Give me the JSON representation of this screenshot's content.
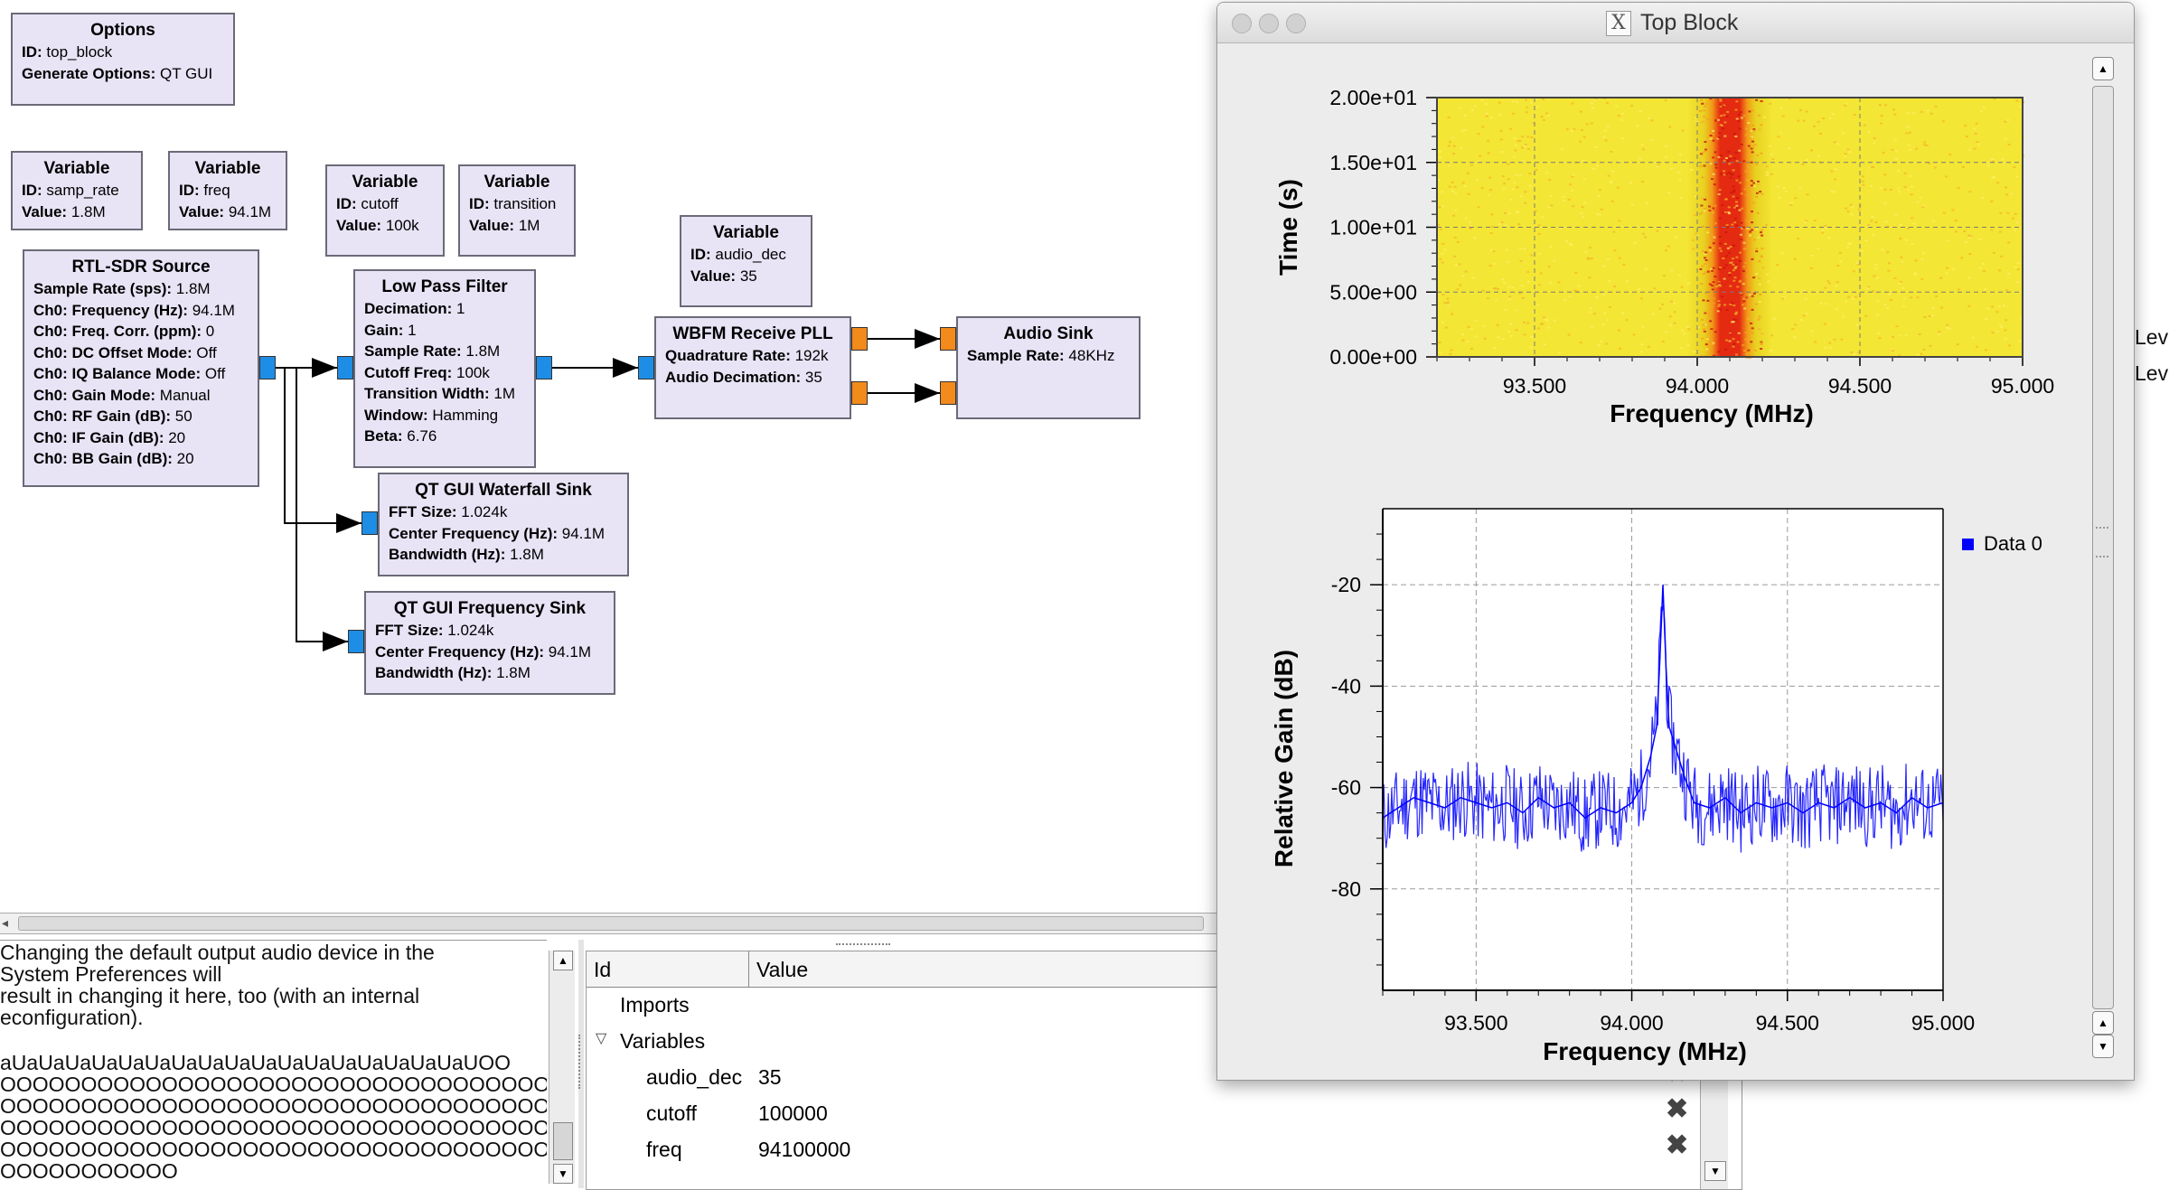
{
  "flowgraph": {
    "blocks": [
      {
        "title": "Options",
        "params": [
          [
            "ID:",
            "top_block"
          ],
          [
            "Generate Options:",
            "QT GUI"
          ]
        ]
      },
      {
        "title": "Variable",
        "params": [
          [
            "ID:",
            "samp_rate"
          ],
          [
            "Value:",
            "1.8M"
          ]
        ]
      },
      {
        "title": "Variable",
        "params": [
          [
            "ID:",
            "freq"
          ],
          [
            "Value:",
            "94.1M"
          ]
        ]
      },
      {
        "title": "Variable",
        "params": [
          [
            "ID:",
            "cutoff"
          ],
          [
            "Value:",
            "100k"
          ]
        ]
      },
      {
        "title": "Variable",
        "params": [
          [
            "ID:",
            "transition"
          ],
          [
            "Value:",
            "1M"
          ]
        ]
      },
      {
        "title": "Variable",
        "params": [
          [
            "ID:",
            "audio_dec"
          ],
          [
            "Value:",
            "35"
          ]
        ]
      },
      {
        "title": "RTL-SDR Source",
        "params": [
          [
            "Sample Rate (sps):",
            "1.8M"
          ],
          [
            "Ch0: Frequency (Hz):",
            "94.1M"
          ],
          [
            "Ch0: Freq. Corr. (ppm):",
            "0"
          ],
          [
            "Ch0: DC Offset Mode:",
            "Off"
          ],
          [
            "Ch0: IQ Balance Mode:",
            "Off"
          ],
          [
            "Ch0: Gain Mode:",
            "Manual"
          ],
          [
            "Ch0: RF Gain (dB):",
            "50"
          ],
          [
            "Ch0: IF Gain (dB):",
            "20"
          ],
          [
            "Ch0: BB Gain (dB):",
            "20"
          ]
        ]
      },
      {
        "title": "Low Pass Filter",
        "params": [
          [
            "Decimation:",
            "1"
          ],
          [
            "Gain:",
            "1"
          ],
          [
            "Sample Rate:",
            "1.8M"
          ],
          [
            "Cutoff Freq:",
            "100k"
          ],
          [
            "Transition Width:",
            "1M"
          ],
          [
            "Window:",
            "Hamming"
          ],
          [
            "Beta:",
            "6.76"
          ]
        ]
      },
      {
        "title": "WBFM Receive PLL",
        "params": [
          [
            "Quadrature Rate:",
            "192k"
          ],
          [
            "Audio Decimation:",
            "35"
          ]
        ]
      },
      {
        "title": "Audio Sink",
        "params": [
          [
            "Sample Rate:",
            "48KHz"
          ]
        ]
      },
      {
        "title": "QT GUI Waterfall Sink",
        "params": [
          [
            "FFT Size:",
            "1.024k"
          ],
          [
            "Center Frequency (Hz):",
            "94.1M"
          ],
          [
            "Bandwidth (Hz):",
            "1.8M"
          ]
        ]
      },
      {
        "title": "QT GUI Frequency Sink",
        "params": [
          [
            "FFT Size:",
            "1.024k"
          ],
          [
            "Center Frequency (Hz):",
            "94.1M"
          ],
          [
            "Bandwidth (Hz):",
            "1.8M"
          ]
        ]
      }
    ]
  },
  "console": {
    "lines": [
      " Changing the default output audio device in the",
      "System Preferences will",
      " result in changing it here, too (with an internal",
      "econfiguration).",
      "",
      "aUaUaUaUaUaUaUaUaUaUaUaUaUaUaUaUaUaUOO",
      "OOOOOOOOOOOOOOOOOOOOOOOOOOOOOOOOOOOO",
      "OOOOOOOOOOOOOOOOOOOOOOOOOOOOOOOOOOOO",
      "OOOOOOOOOOOOOOOOOOOOOOOOOOOOOOOOOOOO",
      "OOOOOOOOOOOOOOOOOOOOOOOOOOOOOOOOOOOO",
      "OOOOOOOOOOO"
    ]
  },
  "variables_panel": {
    "col_id": "Id",
    "col_value": "Value",
    "groups": {
      "imports": "Imports",
      "variables": "Variables"
    },
    "rows": [
      {
        "id": "audio_dec",
        "value": "35"
      },
      {
        "id": "cutoff",
        "value": "100000"
      },
      {
        "id": "freq",
        "value": "94100000"
      }
    ]
  },
  "right_labels": [
    "Lev",
    "Lev"
  ],
  "window": {
    "title": "Top Block",
    "x_glyph": "X",
    "legend": "Data 0",
    "accent_trace": "#0000ff"
  },
  "chart_data": [
    {
      "type": "heatmap",
      "title": "",
      "xlabel": "Frequency (MHz)",
      "ylabel": "Time (s)",
      "xlim": [
        93.2,
        95.0
      ],
      "ylim": [
        0,
        20
      ],
      "xticks": [
        "93.500",
        "94.000",
        "94.500",
        "95.000"
      ],
      "yticks": [
        "0.00e+00",
        "5.00e+00",
        "1.00e+01",
        "1.50e+01",
        "2.00e+01"
      ],
      "xtick_values": [
        93.5,
        94.0,
        94.5,
        95.0
      ],
      "ytick_values": [
        0,
        5,
        10,
        15,
        20
      ],
      "peak_center_mhz": 94.1,
      "peak_width_mhz": 0.12,
      "grid": true,
      "colormap": [
        "#f4e634",
        "#e8d020",
        "#f29a18",
        "#e52a12"
      ]
    },
    {
      "type": "line",
      "title": "",
      "xlabel": "Frequency (MHz)",
      "ylabel": "Relative Gain (dB)",
      "xlim": [
        93.2,
        95.0
      ],
      "ylim": [
        -100,
        -5
      ],
      "xticks": [
        "93.500",
        "94.000",
        "94.500",
        "95.000"
      ],
      "yticks": [
        "-20",
        "-40",
        "-60",
        "-80"
      ],
      "xtick_values": [
        93.5,
        94.0,
        94.5,
        95.0
      ],
      "ytick_values": [
        -20,
        -40,
        -60,
        -80
      ],
      "grid": true,
      "legend_position": "top-right",
      "series": [
        {
          "name": "Data 0",
          "x": [
            93.2,
            93.25,
            93.3,
            93.35,
            93.4,
            93.45,
            93.5,
            93.55,
            93.6,
            93.65,
            93.7,
            93.75,
            93.8,
            93.85,
            93.9,
            93.95,
            94.0,
            94.03,
            94.06,
            94.08,
            94.09,
            94.1,
            94.11,
            94.12,
            94.14,
            94.17,
            94.2,
            94.25,
            94.3,
            94.35,
            94.4,
            94.45,
            94.5,
            94.55,
            94.6,
            94.65,
            94.7,
            94.75,
            94.8,
            94.85,
            94.9,
            94.95,
            95.0
          ],
          "y": [
            -66,
            -64,
            -62,
            -63,
            -64,
            -62,
            -63,
            -64,
            -63,
            -65,
            -62,
            -64,
            -63,
            -66,
            -64,
            -65,
            -63,
            -60,
            -54,
            -48,
            -35,
            -20,
            -36,
            -48,
            -52,
            -58,
            -63,
            -64,
            -62,
            -65,
            -63,
            -64,
            -63,
            -65,
            -63,
            -64,
            -62,
            -64,
            -63,
            -65,
            -62,
            -64,
            -63
          ]
        }
      ]
    }
  ]
}
